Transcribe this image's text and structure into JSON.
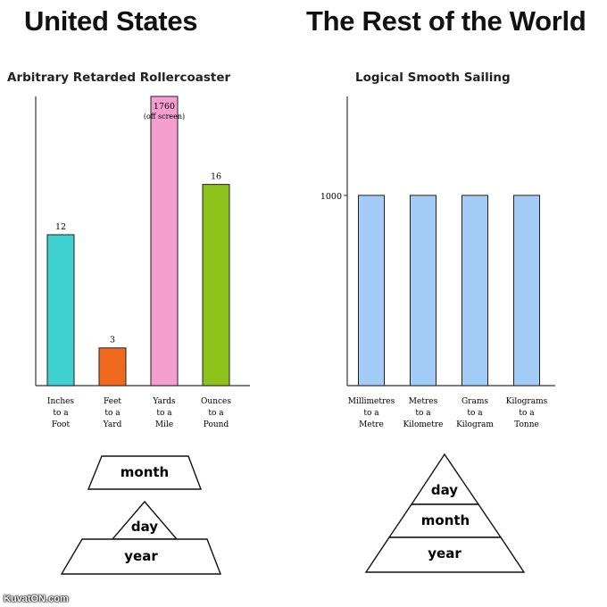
{
  "headings": {
    "left": "United States",
    "right": "The Rest of the World"
  },
  "chart_data": [
    {
      "type": "bar",
      "title": "Arbitrary Retarded Rollercoaster",
      "categories": [
        [
          "Inches",
          "to a",
          "Foot"
        ],
        [
          "Feet",
          "to a",
          "Yard"
        ],
        [
          "Yards",
          "to a",
          "Mile"
        ],
        [
          "Ounces",
          "to a",
          "Pound"
        ]
      ],
      "values": [
        12,
        3,
        1760,
        16
      ],
      "data_labels": [
        "12",
        "3",
        "1760",
        "16"
      ],
      "offscreen_note": "(off screen)",
      "colors": [
        "#3fd0d0",
        "#f06a1e",
        "#f59fd0",
        "#8cc21a"
      ],
      "ylim": [
        0,
        23
      ],
      "grid": false
    },
    {
      "type": "bar",
      "title": "Logical Smooth Sailing",
      "categories": [
        [
          "Millimetres",
          "to a",
          "Metre"
        ],
        [
          "Metres",
          "to a",
          "Kilometre"
        ],
        [
          "Grams",
          "to a",
          "Kilogram"
        ],
        [
          "Kilograms",
          "to a",
          "Tonne"
        ]
      ],
      "values": [
        1000,
        1000,
        1000,
        1000
      ],
      "yticks": [
        "1000"
      ],
      "colors": [
        "#a3cdf7",
        "#a3cdf7",
        "#a3cdf7",
        "#a3cdf7"
      ],
      "ylim": [
        0,
        1520
      ],
      "grid": false
    }
  ],
  "pyramids": {
    "left": [
      "month",
      "day",
      "year"
    ],
    "right": [
      "day",
      "month",
      "year"
    ]
  },
  "watermark": "KuvatON.com"
}
